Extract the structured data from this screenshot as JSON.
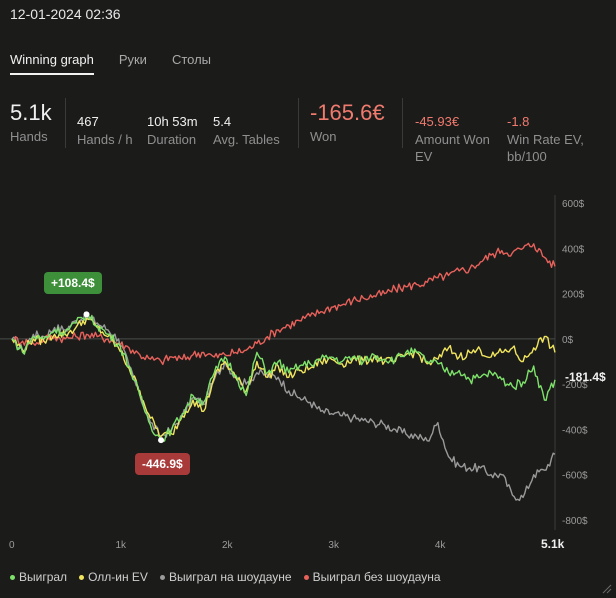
{
  "header": {
    "datetime": "12-01-2024 02:36"
  },
  "tabs": [
    {
      "label": "Winning graph",
      "active": true
    },
    {
      "label": "Руки",
      "active": false
    },
    {
      "label": "Столы",
      "active": false
    }
  ],
  "stats": {
    "hands": {
      "value": "5.1k",
      "label": "Hands"
    },
    "hands_per_hour": {
      "value": "467",
      "label": "Hands / h"
    },
    "duration": {
      "value": "10h 53m",
      "label": "Duration"
    },
    "avg_tables": {
      "value": "5.4",
      "label": "Avg. Tables"
    },
    "won": {
      "value": "-165.6€",
      "label": "Won"
    },
    "amount_won_ev": {
      "value": "-45.93€",
      "label_line1": "Amount Won",
      "label_line2": "EV"
    },
    "win_rate_ev": {
      "value": "-1.8",
      "label_line1": "Win Rate EV,",
      "label_line2": "bb/100"
    }
  },
  "callouts": {
    "max": "+108.4$",
    "min": "-446.9$",
    "end": "-181.4$"
  },
  "legend": [
    {
      "label": "Выиграл",
      "color": "#7ee26a"
    },
    {
      "label": "Олл-ин EV",
      "color": "#f1e55d"
    },
    {
      "label": "Выиграл на шоудауне",
      "color": "#9a9a9a"
    },
    {
      "label": "Выиграл без шоудауна",
      "color": "#e8615b"
    }
  ],
  "chart_data": {
    "type": "line",
    "x_ticks": [
      "0",
      "1k",
      "2k",
      "3k",
      "4k",
      "5.1k"
    ],
    "y_ticks": [
      "600$",
      "400$",
      "200$",
      "0$",
      "-200$",
      "-400$",
      "-600$",
      "-800$"
    ],
    "ylim": [
      -800,
      600
    ],
    "xlim": [
      0,
      5100
    ],
    "x": [
      0,
      100,
      200,
      300,
      400,
      500,
      600,
      700,
      800,
      900,
      1000,
      1100,
      1200,
      1300,
      1400,
      1500,
      1600,
      1700,
      1800,
      1900,
      2000,
      2100,
      2200,
      2300,
      2400,
      2500,
      2600,
      2700,
      2800,
      2900,
      3000,
      3100,
      3200,
      3300,
      3400,
      3500,
      3600,
      3700,
      3800,
      3900,
      4000,
      4100,
      4200,
      4300,
      4400,
      4500,
      4600,
      4700,
      4800,
      4900,
      5000,
      5100
    ],
    "series": [
      {
        "name": "Выиграл",
        "color": "#7ee26a",
        "values": [
          0,
          -60,
          10,
          0,
          40,
          30,
          70,
          108,
          60,
          20,
          -20,
          -120,
          -250,
          -380,
          -447,
          -400,
          -330,
          -250,
          -280,
          -150,
          -80,
          -160,
          -250,
          -60,
          -150,
          -100,
          -150,
          -120,
          -110,
          -90,
          -80,
          -100,
          -80,
          -100,
          -70,
          -90,
          -90,
          -60,
          -60,
          -100,
          -110,
          -150,
          -140,
          -180,
          -170,
          -150,
          -180,
          -210,
          -190,
          -120,
          -270,
          -181
        ]
      },
      {
        "name": "Олл-ин EV",
        "color": "#f1e55d",
        "values": [
          0,
          -50,
          0,
          -10,
          20,
          20,
          50,
          90,
          50,
          10,
          -40,
          -130,
          -230,
          -350,
          -430,
          -420,
          -340,
          -270,
          -320,
          -170,
          -100,
          -170,
          -230,
          -100,
          -170,
          -120,
          -170,
          -140,
          -130,
          -100,
          -90,
          -110,
          -90,
          -100,
          -80,
          -100,
          -100,
          -70,
          -60,
          -110,
          -90,
          -40,
          -80,
          -60,
          -50,
          -80,
          -60,
          -40,
          -100,
          -40,
          10,
          -60
        ]
      },
      {
        "name": "Выиграл на шоудауне",
        "color": "#9a9a9a",
        "values": [
          0,
          -50,
          20,
          10,
          50,
          40,
          80,
          100,
          70,
          40,
          0,
          -120,
          -250,
          -370,
          -430,
          -400,
          -340,
          -260,
          -290,
          -180,
          -100,
          -170,
          -200,
          -150,
          -160,
          -170,
          -230,
          -260,
          -280,
          -320,
          -330,
          -340,
          -350,
          -360,
          -370,
          -380,
          -400,
          -420,
          -430,
          -450,
          -370,
          -520,
          -560,
          -570,
          -570,
          -600,
          -600,
          -690,
          -700,
          -600,
          -580,
          -510
        ]
      },
      {
        "name": "Выиграл без шоудауна",
        "color": "#e8615b",
        "values": [
          0,
          -10,
          -20,
          0,
          10,
          0,
          10,
          20,
          10,
          0,
          -20,
          -40,
          -70,
          -90,
          -100,
          -80,
          -90,
          -70,
          -60,
          -80,
          -70,
          -60,
          -50,
          -20,
          10,
          40,
          60,
          80,
          100,
          120,
          140,
          150,
          170,
          180,
          190,
          200,
          220,
          230,
          240,
          250,
          270,
          280,
          300,
          310,
          340,
          370,
          390,
          380,
          400,
          420,
          360,
          320
        ]
      }
    ]
  }
}
